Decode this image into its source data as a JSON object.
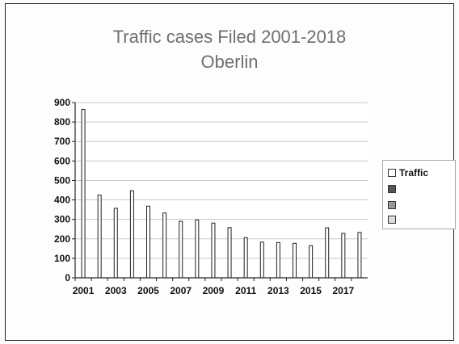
{
  "chart_data": {
    "type": "bar",
    "title": "Traffic cases Filed 2001-2018",
    "subtitle": "Oberlin",
    "categories": [
      "2001",
      "2002",
      "2003",
      "2004",
      "2005",
      "2006",
      "2007",
      "2008",
      "2009",
      "2010",
      "2011",
      "2012",
      "2013",
      "2014",
      "2015",
      "2016",
      "2017",
      "2018"
    ],
    "x_tick_labels": [
      "2001",
      "2003",
      "2005",
      "2007",
      "2009",
      "2011",
      "2013",
      "2015",
      "2017"
    ],
    "series": [
      {
        "name": "Traffic",
        "values": [
          865,
          425,
          357,
          447,
          368,
          333,
          290,
          297,
          281,
          258,
          206,
          183,
          181,
          177,
          165,
          257,
          228,
          233
        ]
      }
    ],
    "ylim": [
      0,
      900
    ],
    "y_ticks": [
      0,
      100,
      200,
      300,
      400,
      500,
      600,
      700,
      800,
      900
    ],
    "xlabel": "",
    "ylabel": "",
    "grid": true,
    "legend_position": "right"
  },
  "legend": {
    "items": [
      {
        "label": "Traffic",
        "color": "#ffffff"
      },
      {
        "label": "",
        "color": "#555555"
      },
      {
        "label": "",
        "color": "#999999"
      },
      {
        "label": "",
        "color": "#dddddd"
      }
    ]
  },
  "colors": {
    "bar_fill": "#ffffff",
    "bar_stroke": "#222222",
    "grid": "#c8c8c8",
    "title": "#6f6f6f"
  }
}
